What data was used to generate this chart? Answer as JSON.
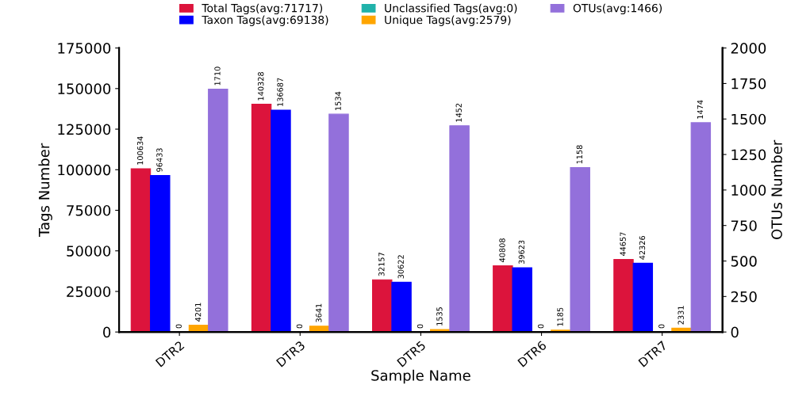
{
  "chart_data": {
    "type": "bar",
    "xlabel": "Sample Name",
    "ylabel": "Tags Number",
    "y2label": "OTUs Number",
    "categories": [
      "DTR2",
      "DTR3",
      "DTR5",
      "DTR6",
      "DTR7"
    ],
    "series": [
      {
        "name": "Total Tags(avg:71717)",
        "color": "#dc143c",
        "values": [
          100634,
          140328,
          32157,
          40808,
          44657
        ]
      },
      {
        "name": "Taxon Tags(avg:69138)",
        "color": "#0000ff",
        "values": [
          96433,
          136687,
          30622,
          39623,
          42326
        ]
      },
      {
        "name": "Unclassified Tags(avg:0)",
        "color": "#20b2aa",
        "values": [
          0,
          0,
          0,
          0,
          0
        ]
      },
      {
        "name": "Unique Tags(avg:2579)",
        "color": "#ffa500",
        "values": [
          4201,
          3641,
          1535,
          1185,
          2331
        ]
      },
      {
        "name": "OTUs(avg:1466)",
        "color": "#9370db",
        "axis": "y2",
        "values": [
          1710,
          1534,
          1452,
          1158,
          1474
        ]
      }
    ],
    "ylim": [
      0,
      175000
    ],
    "yticks": [
      0,
      25000,
      50000,
      75000,
      100000,
      125000,
      150000,
      175000
    ],
    "y2lim": [
      0,
      2000
    ],
    "y2ticks": [
      0,
      250,
      500,
      750,
      1000,
      1250,
      1500,
      1750,
      2000
    ],
    "data_labels": true,
    "legend": "top",
    "grid": false
  }
}
